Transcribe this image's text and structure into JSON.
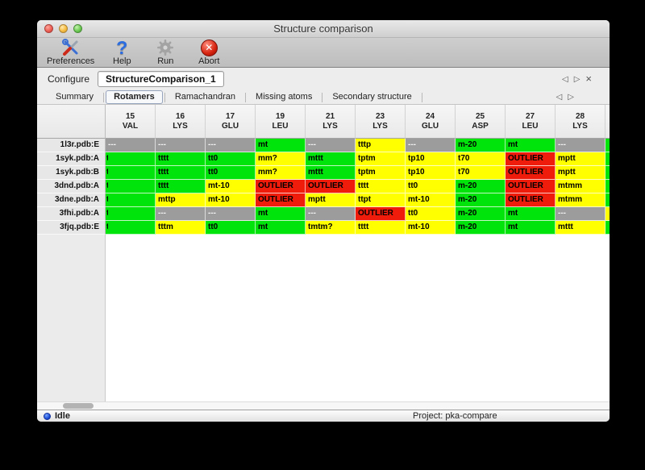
{
  "window": {
    "title": "Structure comparison"
  },
  "titlebar_buttons": {
    "close": "close",
    "minimize": "minimize",
    "zoom": "zoom"
  },
  "toolbar": {
    "items": [
      {
        "label": "Preferences",
        "icon": "tools-icon"
      },
      {
        "label": "Help",
        "icon": "question-icon",
        "glyph": "?"
      },
      {
        "label": "Run",
        "icon": "gear-icon"
      },
      {
        "label": "Abort",
        "icon": "abort-icon",
        "glyph": "✕"
      }
    ]
  },
  "configure": {
    "label": "Configure",
    "value": "StructureComparison_1",
    "nav_prev": "◁",
    "nav_next": "▷",
    "nav_close": "×"
  },
  "tabs": {
    "items": [
      "Summary",
      "Rotamers",
      "Ramachandran",
      "Missing atoms",
      "Secondary structure"
    ],
    "active_index": 1,
    "nav_prev": "◁",
    "nav_next": "▷"
  },
  "table": {
    "columns": [
      {
        "num": "15",
        "res": "VAL"
      },
      {
        "num": "16",
        "res": "LYS"
      },
      {
        "num": "17",
        "res": "GLU"
      },
      {
        "num": "19",
        "res": "LEU"
      },
      {
        "num": "21",
        "res": "LYS"
      },
      {
        "num": "23",
        "res": "LYS"
      },
      {
        "num": "24",
        "res": "GLU"
      },
      {
        "num": "25",
        "res": "ASP"
      },
      {
        "num": "27",
        "res": "LEU"
      },
      {
        "num": "28",
        "res": "LYS"
      }
    ],
    "rows": [
      {
        "label": "1l3r.pdb:E",
        "sliver": "green",
        "cells": [
          {
            "t": "---",
            "c": "gray"
          },
          {
            "t": "---",
            "c": "gray"
          },
          {
            "t": "---",
            "c": "gray"
          },
          {
            "t": "mt",
            "c": "green"
          },
          {
            "t": "---",
            "c": "gray"
          },
          {
            "t": "tttp",
            "c": "yellow"
          },
          {
            "t": "---",
            "c": "gray"
          },
          {
            "t": "m-20",
            "c": "green"
          },
          {
            "t": "mt",
            "c": "green"
          },
          {
            "t": "---",
            "c": "gray"
          }
        ]
      },
      {
        "label": "1syk.pdb:A",
        "sliver": "green",
        "cells": [
          {
            "t": "t",
            "c": "green",
            "clip": true
          },
          {
            "t": "tttt",
            "c": "green"
          },
          {
            "t": "tt0",
            "c": "green"
          },
          {
            "t": "mm?",
            "c": "yellow"
          },
          {
            "t": "mttt",
            "c": "green"
          },
          {
            "t": "tptm",
            "c": "yellow"
          },
          {
            "t": "tp10",
            "c": "yellow"
          },
          {
            "t": "t70",
            "c": "yellow"
          },
          {
            "t": "OUTLIER",
            "c": "red"
          },
          {
            "t": "mptt",
            "c": "yellow"
          }
        ]
      },
      {
        "label": "1syk.pdb:B",
        "sliver": "green",
        "cells": [
          {
            "t": "t",
            "c": "green",
            "clip": true
          },
          {
            "t": "tttt",
            "c": "green"
          },
          {
            "t": "tt0",
            "c": "green"
          },
          {
            "t": "mm?",
            "c": "yellow"
          },
          {
            "t": "mttt",
            "c": "green"
          },
          {
            "t": "tptm",
            "c": "yellow"
          },
          {
            "t": "tp10",
            "c": "yellow"
          },
          {
            "t": "t70",
            "c": "yellow"
          },
          {
            "t": "OUTLIER",
            "c": "red"
          },
          {
            "t": "mptt",
            "c": "yellow"
          }
        ]
      },
      {
        "label": "3dnd.pdb:A",
        "sliver": "green",
        "cells": [
          {
            "t": "t",
            "c": "green",
            "clip": true
          },
          {
            "t": "tttt",
            "c": "green"
          },
          {
            "t": "mt-10",
            "c": "yellow"
          },
          {
            "t": "OUTLIER",
            "c": "red"
          },
          {
            "t": "OUTLIER",
            "c": "red"
          },
          {
            "t": "tttt",
            "c": "yellow"
          },
          {
            "t": "tt0",
            "c": "yellow"
          },
          {
            "t": "m-20",
            "c": "green"
          },
          {
            "t": "OUTLIER",
            "c": "red"
          },
          {
            "t": "mtmm",
            "c": "yellow"
          }
        ]
      },
      {
        "label": "3dne.pdb:A",
        "sliver": "green",
        "cells": [
          {
            "t": "t",
            "c": "green",
            "clip": true
          },
          {
            "t": "mttp",
            "c": "yellow"
          },
          {
            "t": "mt-10",
            "c": "yellow"
          },
          {
            "t": "OUTLIER",
            "c": "red"
          },
          {
            "t": "mptt",
            "c": "yellow"
          },
          {
            "t": "ttpt",
            "c": "yellow"
          },
          {
            "t": "mt-10",
            "c": "yellow"
          },
          {
            "t": "m-20",
            "c": "green"
          },
          {
            "t": "OUTLIER",
            "c": "red"
          },
          {
            "t": "mtmm",
            "c": "yellow"
          }
        ]
      },
      {
        "label": "3fhi.pdb:A",
        "sliver": "yellow",
        "cells": [
          {
            "t": "t",
            "c": "green",
            "clip": true
          },
          {
            "t": "---",
            "c": "gray"
          },
          {
            "t": "---",
            "c": "gray"
          },
          {
            "t": "mt",
            "c": "green"
          },
          {
            "t": "---",
            "c": "gray"
          },
          {
            "t": "OUTLIER",
            "c": "red"
          },
          {
            "t": "tt0",
            "c": "yellow"
          },
          {
            "t": "m-20",
            "c": "green"
          },
          {
            "t": "mt",
            "c": "green"
          },
          {
            "t": "---",
            "c": "gray"
          }
        ]
      },
      {
        "label": "3fjq.pdb:E",
        "sliver": "green",
        "cells": [
          {
            "t": "t",
            "c": "green",
            "clip": true
          },
          {
            "t": "tttm",
            "c": "yellow"
          },
          {
            "t": "tt0",
            "c": "green"
          },
          {
            "t": "mt",
            "c": "green"
          },
          {
            "t": "tmtm?",
            "c": "yellow"
          },
          {
            "t": "tttt",
            "c": "yellow"
          },
          {
            "t": "mt-10",
            "c": "yellow"
          },
          {
            "t": "m-20",
            "c": "green"
          },
          {
            "t": "mt",
            "c": "green"
          },
          {
            "t": "mttt",
            "c": "yellow"
          }
        ]
      }
    ]
  },
  "statusbar": {
    "status": "Idle",
    "project": "Project: pka-compare"
  },
  "colors": {
    "green": "#00e40c",
    "yellow": "#ffff00",
    "red": "#ef1c0c",
    "gray": "#9c9c9c",
    "gray_text": "#f2f2f2"
  }
}
